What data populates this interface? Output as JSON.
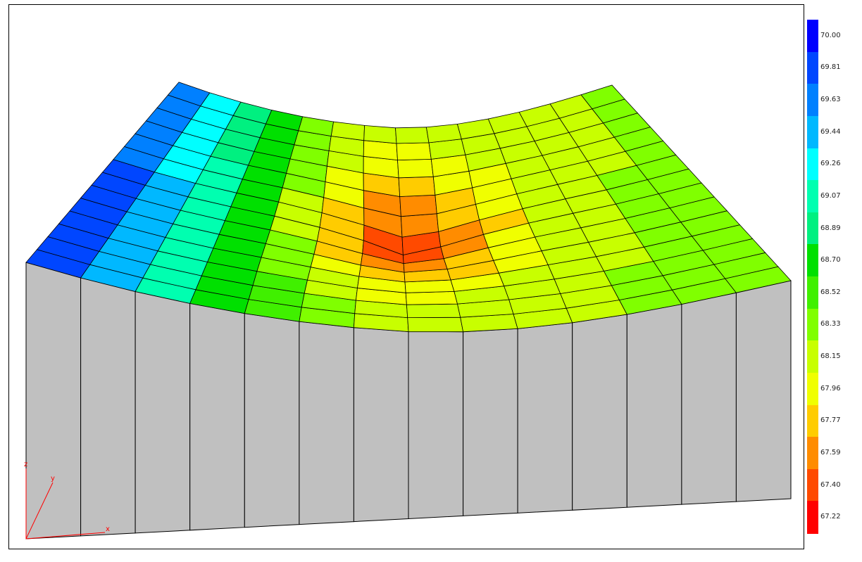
{
  "legend": {
    "colors": [
      "#0000ff",
      "#0046ff",
      "#0080ff",
      "#00b8ff",
      "#00ffff",
      "#00ffb0",
      "#00f080",
      "#00e000",
      "#40f000",
      "#80ff00",
      "#c8ff00",
      "#f0ff00",
      "#ffcc00",
      "#ff8c00",
      "#ff4a00",
      "#ff0000"
    ],
    "labels": [
      "70.00",
      "69.81",
      "69.63",
      "69.44",
      "69.26",
      "69.07",
      "68.89",
      "68.70",
      "68.52",
      "68.33",
      "68.15",
      "67.96",
      "67.77",
      "67.59",
      "67.40",
      "67.22"
    ]
  },
  "axes": {
    "x_label": "x",
    "y_label": "y",
    "z_label": "z",
    "color": "#ff0000"
  },
  "surface": {
    "side_face_color": "#c0c0c0",
    "min_value": 67.22,
    "max_value": 70.0
  }
}
